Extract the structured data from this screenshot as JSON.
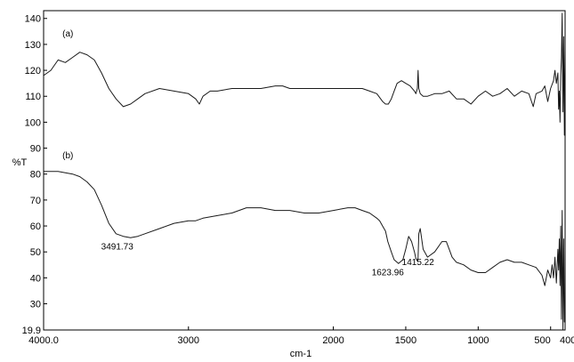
{
  "chart_data": {
    "type": "line",
    "xlabel": "cm-1",
    "ylabel": "%T",
    "xlim": [
      4000,
      400
    ],
    "ylim": [
      19.9,
      143
    ],
    "x_ticks": [
      4000,
      3000,
      2000,
      1500,
      1000,
      500,
      400
    ],
    "x_tick_labels": [
      "4000.0",
      "3000",
      "2000",
      "1500",
      "1000",
      "500",
      "400.0"
    ],
    "y_ticks": [
      19.9,
      30,
      40,
      50,
      60,
      70,
      80,
      90,
      100,
      110,
      120,
      130,
      140
    ],
    "y_tick_labels": [
      "19.9",
      "30",
      "40",
      "50",
      "60",
      "70",
      "80",
      "90",
      "100",
      "110",
      "120",
      "130",
      "140"
    ],
    "grid": false,
    "series": [
      {
        "name": "(a)",
        "x": [
          4000,
          3950,
          3900,
          3850,
          3800,
          3750,
          3700,
          3650,
          3600,
          3550,
          3500,
          3450,
          3400,
          3350,
          3300,
          3200,
          3100,
          3000,
          2950,
          2925,
          2900,
          2850,
          2800,
          2700,
          2600,
          2500,
          2400,
          2350,
          2300,
          2200,
          2100,
          2000,
          1900,
          1800,
          1750,
          1700,
          1660,
          1640,
          1620,
          1600,
          1580,
          1560,
          1530,
          1500,
          1470,
          1440,
          1430,
          1420,
          1415,
          1410,
          1400,
          1380,
          1350,
          1300,
          1250,
          1200,
          1150,
          1100,
          1050,
          1000,
          950,
          900,
          850,
          800,
          750,
          700,
          650,
          620,
          600,
          560,
          540,
          520,
          500,
          480,
          470,
          460,
          450,
          445,
          440,
          435,
          430,
          425,
          420,
          415,
          410,
          405,
          400
        ],
        "y": [
          118,
          120,
          124,
          123,
          125,
          127,
          126,
          124,
          119,
          113,
          109,
          106,
          107,
          109,
          111,
          113,
          112,
          111,
          109,
          107,
          110,
          112,
          112,
          113,
          113,
          113,
          114,
          114,
          113,
          113,
          113,
          113,
          113,
          113,
          112,
          111,
          108,
          107,
          107,
          109,
          112,
          115,
          116,
          115,
          114,
          112,
          111,
          113,
          120,
          113,
          111,
          110,
          110,
          111,
          111,
          112,
          109,
          109,
          107,
          110,
          112,
          110,
          111,
          113,
          110,
          112,
          111,
          106,
          111,
          112,
          114,
          108,
          113,
          116,
          120,
          115,
          119,
          105,
          112,
          100,
          118,
          125,
          142,
          104,
          133,
          95,
          130
        ]
      },
      {
        "name": "(b)",
        "x": [
          4000,
          3900,
          3800,
          3750,
          3700,
          3650,
          3600,
          3550,
          3500,
          3450,
          3400,
          3350,
          3300,
          3200,
          3100,
          3000,
          2950,
          2900,
          2800,
          2700,
          2600,
          2500,
          2400,
          2300,
          2200,
          2100,
          2000,
          1900,
          1850,
          1800,
          1750,
          1700,
          1680,
          1660,
          1640,
          1624,
          1600,
          1580,
          1550,
          1520,
          1500,
          1480,
          1460,
          1440,
          1430,
          1420,
          1415,
          1410,
          1400,
          1380,
          1350,
          1300,
          1250,
          1220,
          1200,
          1180,
          1150,
          1100,
          1050,
          1000,
          950,
          900,
          850,
          800,
          750,
          700,
          650,
          600,
          560,
          540,
          520,
          500,
          490,
          480,
          470,
          460,
          450,
          445,
          440,
          435,
          430,
          425,
          420,
          415,
          410,
          405,
          400
        ],
        "y": [
          81,
          81,
          80,
          79,
          77,
          74,
          68,
          61,
          57,
          56,
          55.5,
          56,
          57,
          59,
          61,
          62,
          62,
          63,
          64,
          65,
          67,
          67,
          66,
          66,
          65,
          65,
          66,
          67,
          67,
          66,
          65,
          63,
          62,
          60,
          58,
          54,
          50,
          47,
          45.5,
          47,
          51,
          56,
          54,
          50,
          47.5,
          46.5,
          47.8,
          57,
          59,
          51,
          48,
          50,
          54,
          54,
          51,
          48,
          46,
          45,
          43,
          42,
          42,
          44,
          46,
          47,
          46,
          46,
          45,
          44,
          41,
          37,
          43,
          40,
          45,
          40,
          48,
          38,
          51,
          43,
          55,
          37,
          60,
          24,
          66,
          20,
          55,
          23,
          28
        ]
      }
    ],
    "labels": [
      {
        "text": "(a)",
        "x": 3870,
        "y": 133
      },
      {
        "text": "(b)",
        "x": 3870,
        "y": 86
      }
    ],
    "annotations": [
      {
        "text": "3491.73",
        "x": 3491.73,
        "y": 51
      },
      {
        "text": "1623.96",
        "x": 1623.96,
        "y": 41
      },
      {
        "text": "1415.22",
        "x": 1415.22,
        "y": 45
      }
    ]
  }
}
